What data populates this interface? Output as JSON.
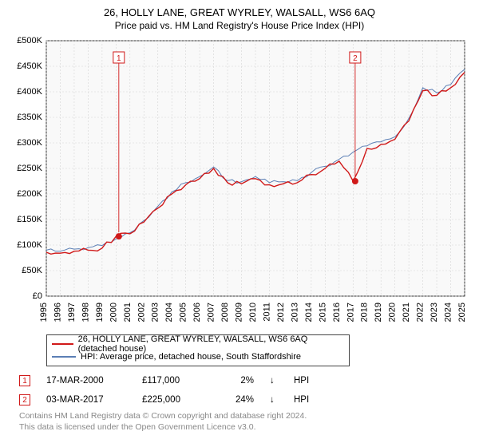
{
  "title": "26, HOLLY LANE, GREAT WYRLEY, WALSALL, WS6 6AQ",
  "subtitle": "Price paid vs. HM Land Registry's House Price Index (HPI)",
  "chart": {
    "type": "line",
    "background_color": "#f9f9f9",
    "grid_color": "#d5d5d5",
    "axis_color": "#000000",
    "label_fontsize": 11,
    "y": {
      "min": 0,
      "max": 500000,
      "step": 50000,
      "prefix": "£",
      "ticks": [
        "£0",
        "£50K",
        "£100K",
        "£150K",
        "£200K",
        "£250K",
        "£300K",
        "£350K",
        "£400K",
        "£450K",
        "£500K"
      ]
    },
    "x": {
      "min": 1995,
      "max": 2025,
      "step": 1,
      "ticks": [
        "1995",
        "1996",
        "1997",
        "1998",
        "1999",
        "2000",
        "2001",
        "2002",
        "2003",
        "2004",
        "2005",
        "2006",
        "2007",
        "2008",
        "2009",
        "2010",
        "2011",
        "2012",
        "2013",
        "2014",
        "2015",
        "2016",
        "2017",
        "2018",
        "2019",
        "2020",
        "2021",
        "2022",
        "2023",
        "2024",
        "2025"
      ]
    },
    "series": [
      {
        "name": "hpi",
        "color": "#5b7fb5",
        "width": 1,
        "points": [
          [
            1995,
            90000
          ],
          [
            1996,
            88000
          ],
          [
            1997,
            92000
          ],
          [
            1998,
            95000
          ],
          [
            1999,
            99000
          ],
          [
            2000,
            112000
          ],
          [
            2001,
            124000
          ],
          [
            2002,
            148000
          ],
          [
            2003,
            176000
          ],
          [
            2004,
            204000
          ],
          [
            2005,
            222000
          ],
          [
            2006,
            234000
          ],
          [
            2007,
            253000
          ],
          [
            2008,
            226000
          ],
          [
            2009,
            224000
          ],
          [
            2010,
            234000
          ],
          [
            2011,
            222000
          ],
          [
            2012,
            224000
          ],
          [
            2013,
            226000
          ],
          [
            2014,
            242000
          ],
          [
            2015,
            254000
          ],
          [
            2016,
            268000
          ],
          [
            2017,
            282000
          ],
          [
            2018,
            294000
          ],
          [
            2019,
            302000
          ],
          [
            2020,
            312000
          ],
          [
            2021,
            348000
          ],
          [
            2022,
            408000
          ],
          [
            2023,
            398000
          ],
          [
            2024,
            414000
          ],
          [
            2025,
            444000
          ]
        ]
      },
      {
        "name": "property",
        "color": "#d01919",
        "width": 1.4,
        "points": [
          [
            1995,
            86000
          ],
          [
            1996,
            84000
          ],
          [
            1997,
            88000
          ],
          [
            1998,
            90000
          ],
          [
            1999,
            94000
          ],
          [
            2000,
            117000
          ],
          [
            2001,
            122000
          ],
          [
            2002,
            145000
          ],
          [
            2003,
            172000
          ],
          [
            2004,
            200000
          ],
          [
            2005,
            218000
          ],
          [
            2006,
            230000
          ],
          [
            2007,
            250000
          ],
          [
            2008,
            222000
          ],
          [
            2009,
            220000
          ],
          [
            2010,
            230000
          ],
          [
            2011,
            218000
          ],
          [
            2012,
            220000
          ],
          [
            2013,
            222000
          ],
          [
            2014,
            238000
          ],
          [
            2015,
            250000
          ],
          [
            2016,
            264000
          ],
          [
            2017,
            225000
          ],
          [
            2018,
            289000
          ],
          [
            2019,
            297000
          ],
          [
            2020,
            307000
          ],
          [
            2021,
            343000
          ],
          [
            2022,
            402000
          ],
          [
            2023,
            393000
          ],
          [
            2024,
            408000
          ],
          [
            2025,
            438000
          ]
        ]
      }
    ],
    "markers": [
      {
        "label": "1",
        "year": 2000.2,
        "price": 117000,
        "dot_color": "#d01919",
        "box_color": "#d01919"
      },
      {
        "label": "2",
        "year": 2017.15,
        "price": 225000,
        "dot_color": "#d01919",
        "box_color": "#d01919"
      }
    ]
  },
  "legend": {
    "items": [
      {
        "color": "#d01919",
        "label": "26, HOLLY LANE, GREAT WYRLEY, WALSALL, WS6 6AQ (detached house)"
      },
      {
        "color": "#5b7fb5",
        "label": "HPI: Average price, detached house, South Staffordshire"
      }
    ]
  },
  "transactions": [
    {
      "marker": "1",
      "marker_color": "#d01919",
      "date": "17-MAR-2000",
      "price": "£117,000",
      "diff": "2%",
      "arrow": "↓",
      "vs": "HPI"
    },
    {
      "marker": "2",
      "marker_color": "#d01919",
      "date": "03-MAR-2017",
      "price": "£225,000",
      "diff": "24%",
      "arrow": "↓",
      "vs": "HPI"
    }
  ],
  "footer": {
    "line1": "Contains HM Land Registry data © Crown copyright and database right 2024.",
    "line2": "This data is licensed under the Open Government Licence v3.0."
  }
}
